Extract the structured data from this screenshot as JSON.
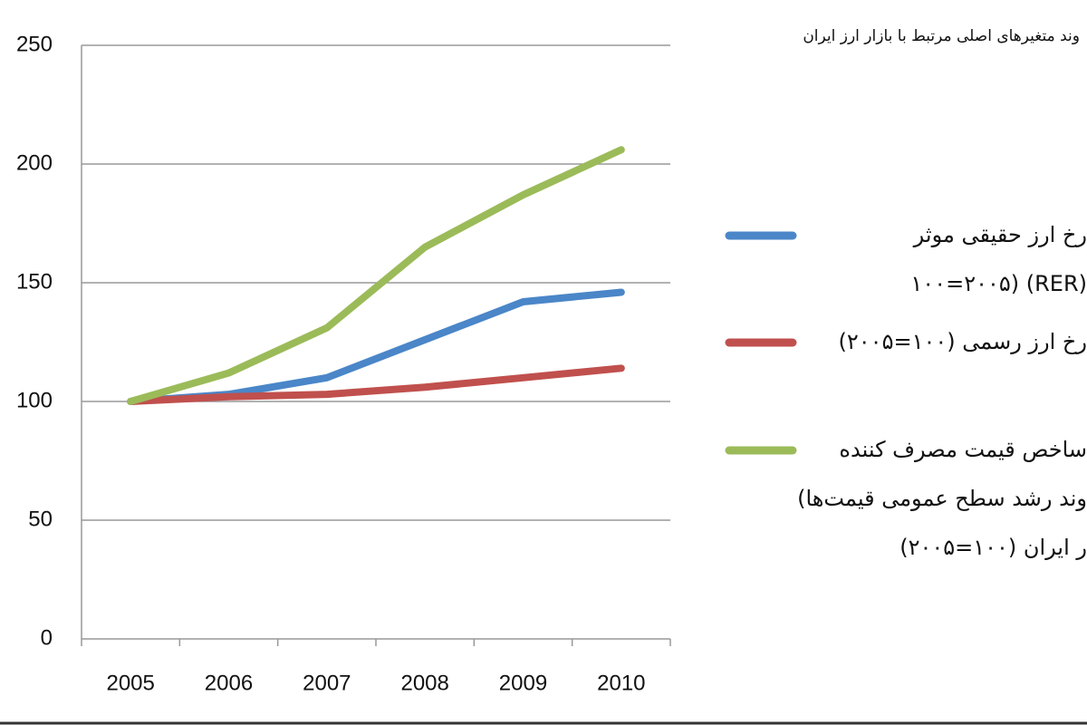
{
  "chart_data": {
    "type": "line",
    "title": "وند متغیرهای اصلی مرتبط با بازار ارز ایران",
    "categories": [
      "2005",
      "2006",
      "2007",
      "2008",
      "2009",
      "2010"
    ],
    "series": [
      {
        "name": "رخ ارز حقیقی موثر\n(RER) (۱۰۰=۲۰۰۵",
        "color": "#4a86c8",
        "values": [
          100,
          103,
          110,
          126,
          142,
          146
        ]
      },
      {
        "name": "رخ ارز رسمی (۱۰۰=۲۰۰۵)",
        "color": "#c0504d",
        "values": [
          100,
          102,
          103,
          106,
          110,
          114
        ]
      },
      {
        "name": "ساخص قیمت مصرف کننده\nوند رشد سطح عمومی قیمت‌ها)\nر ایران (۱۰۰=۲۰۰۵)",
        "color": "#9bbb59",
        "values": [
          100,
          112,
          131,
          165,
          187,
          206
        ]
      }
    ],
    "ylim": [
      0,
      250
    ],
    "yticks": [
      0,
      50,
      100,
      150,
      200,
      250
    ],
    "grid": true,
    "legend": "right"
  }
}
